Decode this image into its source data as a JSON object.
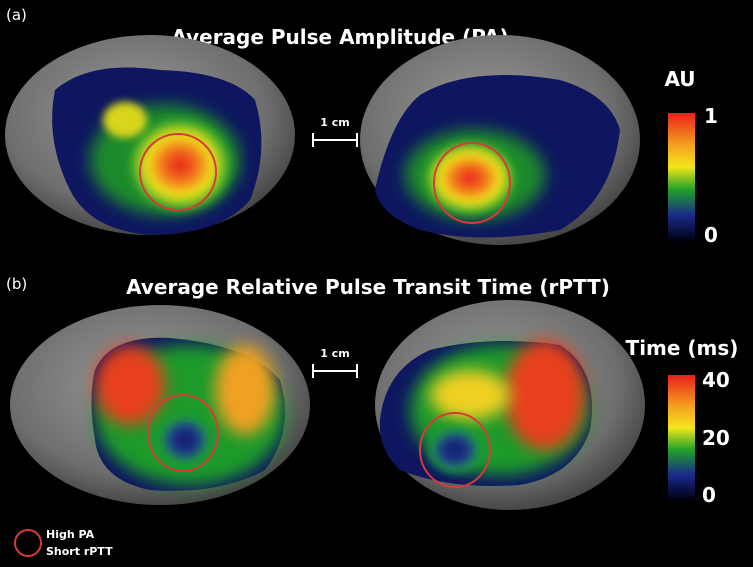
{
  "panels": [
    {
      "label": "(a)",
      "title": "Average Pulse Amplitude (PA)",
      "scale_bar": "1 cm",
      "colorbar": {
        "title": "AU",
        "ticks": [
          "1",
          "0"
        ]
      }
    },
    {
      "label": "(b)",
      "title": "Average Relative Pulse Transit Time (rPTT)",
      "scale_bar": "1 cm",
      "colorbar": {
        "title": "Time (ms)",
        "ticks": [
          "40",
          "20",
          "0"
        ]
      }
    }
  ],
  "legend": {
    "lines": [
      "High PA",
      "Short rPTT"
    ]
  }
}
